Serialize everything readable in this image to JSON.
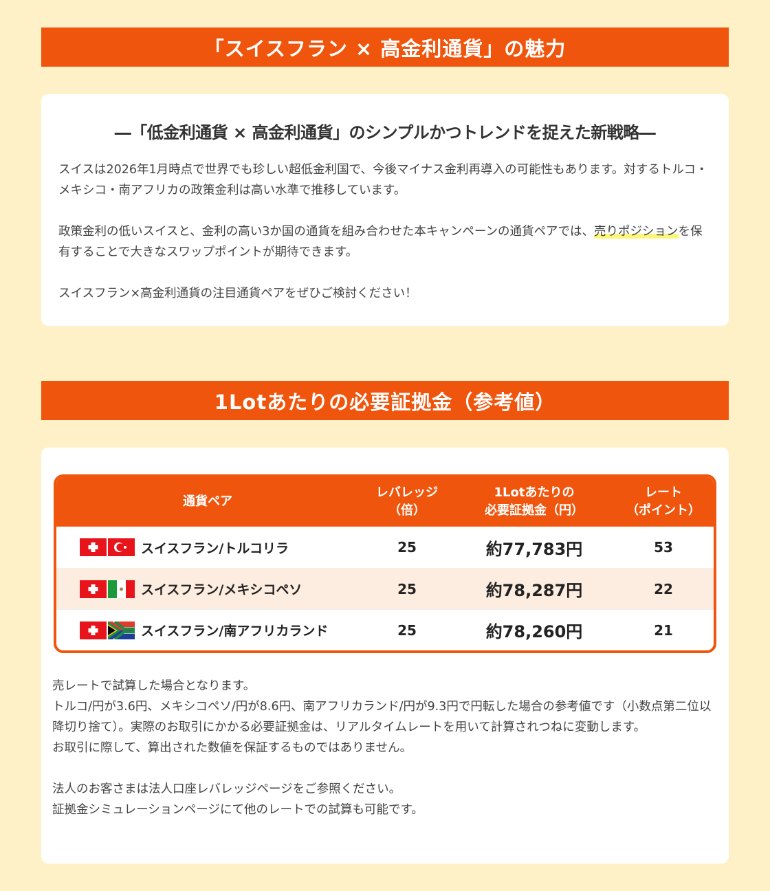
{
  "section1": {
    "title": "「スイスフラン × 高金利通貨」の魅力",
    "subtitle": "―「低金利通貨 × 高金利通貨」のシンプルかつトレンドを捉えた新戦略―",
    "p1": "スイスは2026年1月時点で世界でも珍しい超低金利国で、今後マイナス金利再導入の可能性もあります。対するトルコ・メキシコ・南アフリカの政策金利は高い水準で推移しています。",
    "p2_before": "政策金利の低いスイスと、金利の高い3か国の通貨を組み合わせた本キャンペーンの通貨ペアでは、",
    "p2_highlight": "売りポジション",
    "p2_after": "を保有することで大きなスワップポイントが期待できます。",
    "p3": "スイスフラン×高金利通貨の注目通貨ペアをぜひご検討ください！"
  },
  "section2": {
    "title": "1Lotあたりの必要証拠金（参考値）",
    "headers": {
      "pair": "通貨ペア",
      "leverage_1": "レバレッジ",
      "leverage_2": "（倍）",
      "margin_1": "1Lotあたりの",
      "margin_2": "必要証拠金（円）",
      "rate_1": "レート",
      "rate_2": "（ポイント）"
    },
    "rows": [
      {
        "pair": "スイスフラン/トルコリラ",
        "flags": [
          "switzerland",
          "turkey"
        ],
        "leverage": "25",
        "margin": "約77,783円",
        "rate": "53"
      },
      {
        "pair": "スイスフラン/メキシコペソ",
        "flags": [
          "switzerland",
          "mexico"
        ],
        "leverage": "25",
        "margin": "約78,287円",
        "rate": "22"
      },
      {
        "pair": "スイスフラン/南アフリカランド",
        "flags": [
          "switzerland",
          "south-africa"
        ],
        "leverage": "25",
        "margin": "約78,260円",
        "rate": "21"
      }
    ],
    "notes": [
      "売レートで試算した場合となります。",
      "トルコ/円が3.6円、メキシコペソ/円が8.6円、南アフリカランド/円が9.3円で円転した場合の参考値です（小数点第二位以降切り捨て）。実際のお取引にかかる必要証拠金は、リアルタイムレートを用いて計算されつねに変動します。",
      "お取引に際して、算出された数値を保証するものではありません。"
    ],
    "notes2": [
      "法人のお客さまは法人口座レバレッジページをご参照ください。",
      "証拠金シミュレーションページにて他のレートでの試算も可能です。"
    ]
  },
  "colors": {
    "accent": "#f0550d",
    "background": "#fef0c7",
    "row_alt": "#fdede0",
    "highlight": "#fbf77a"
  }
}
